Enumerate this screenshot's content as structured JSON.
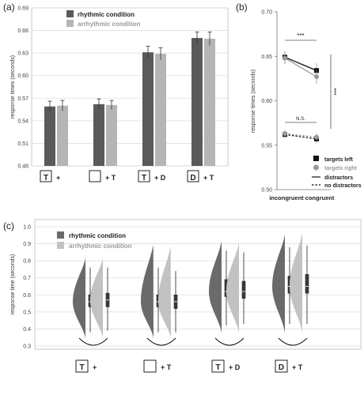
{
  "chart_data": [
    {
      "panel": "(a)",
      "type": "bar",
      "ylabel": "response times (seconds)",
      "ylim": [
        0.48,
        0.69
      ],
      "yticks": [
        "0.48",
        "0.51",
        "0.54",
        "0.57",
        "0.60",
        "0.63",
        "0.66",
        "0.69"
      ],
      "categories": [
        {
          "box": "T",
          "suffix": "+"
        },
        {
          "box": "",
          "suffix": "+ T"
        },
        {
          "box": "T",
          "suffix": "+ D"
        },
        {
          "box": "D",
          "suffix": "+ T"
        }
      ],
      "series": [
        {
          "name": "rhythmic condition",
          "color": "#5a5a5a",
          "values": [
            0.559,
            0.562,
            0.631,
            0.65
          ],
          "errors": [
            0.007,
            0.007,
            0.008,
            0.008
          ]
        },
        {
          "name": "arrhythmic condition",
          "color": "#b5b5b5",
          "values": [
            0.56,
            0.561,
            0.629,
            0.649
          ],
          "errors": [
            0.007,
            0.006,
            0.008,
            0.009
          ]
        }
      ],
      "grid": true,
      "legend": "top-left"
    },
    {
      "panel": "(b)",
      "type": "line",
      "ylabel": "response times (seconds)",
      "ylim": [
        0.5,
        0.7
      ],
      "yticks": [
        "0.50",
        "0.55",
        "0.60",
        "0.65",
        "0.70"
      ],
      "categories": [
        "incongruent",
        "congruent"
      ],
      "series": [
        {
          "name": "targets left",
          "marker": "square",
          "color": "#111111",
          "line": "distractors",
          "values": [
            0.649,
            0.634
          ],
          "errors": [
            0.007,
            0.008
          ]
        },
        {
          "name": "targets right",
          "marker": "circle",
          "color": "#9a9a9a",
          "line": "distractors",
          "values": [
            0.648,
            0.627
          ],
          "errors": [
            0.007,
            0.008
          ]
        },
        {
          "name": "targets left",
          "marker": "square",
          "color": "#111111",
          "line": "no distractors",
          "values": [
            0.562,
            0.557
          ],
          "errors": [
            0.004,
            0.005
          ]
        },
        {
          "name": "targets right",
          "marker": "circle",
          "color": "#9a9a9a",
          "line": "no distractors",
          "values": [
            0.563,
            0.559
          ],
          "errors": [
            0.004,
            0.004
          ]
        }
      ],
      "legend_entries": [
        "targets left",
        "targets right",
        "distractors",
        "no distractors"
      ],
      "annotations": [
        "***",
        "N.S.",
        "***"
      ],
      "legend": "bottom-right"
    },
    {
      "panel": "(c)",
      "type": "violin",
      "ylabel": "response time (seconds)",
      "ylim": [
        0.3,
        1.0
      ],
      "yticks": [
        "1.0",
        "0.9",
        "0.8",
        "0.7",
        "0.6",
        "0.5",
        "0.4",
        "0.3"
      ],
      "categories": [
        {
          "box": "T",
          "suffix": "+"
        },
        {
          "box": "",
          "suffix": "+ T"
        },
        {
          "box": "T",
          "suffix": "+ D"
        },
        {
          "box": "D",
          "suffix": "+ T"
        }
      ],
      "series": [
        {
          "name": "rhythmic condition",
          "color": "#6a6a6a",
          "min": [
            0.34,
            0.34,
            0.37,
            0.37
          ],
          "max": [
            0.82,
            0.91,
            0.92,
            0.96
          ],
          "q1": [
            0.53,
            0.53,
            0.59,
            0.61
          ],
          "median": [
            0.56,
            0.56,
            0.62,
            0.65
          ],
          "q3": [
            0.6,
            0.6,
            0.69,
            0.71
          ],
          "whisker_low": [
            0.38,
            0.38,
            0.42,
            0.43
          ],
          "whisker_high": [
            0.76,
            0.76,
            0.86,
            0.88
          ]
        },
        {
          "name": "arrhythmic condition",
          "color": "#c2c2c2",
          "min": [
            0.34,
            0.34,
            0.37,
            0.37
          ],
          "max": [
            0.82,
            0.9,
            0.91,
            0.97
          ],
          "q1": [
            0.53,
            0.52,
            0.58,
            0.61
          ],
          "median": [
            0.57,
            0.56,
            0.62,
            0.65
          ],
          "q3": [
            0.61,
            0.6,
            0.68,
            0.72
          ],
          "whisker_low": [
            0.39,
            0.38,
            0.43,
            0.43
          ],
          "whisker_high": [
            0.76,
            0.74,
            0.85,
            0.89
          ]
        }
      ],
      "grid": true,
      "legend": "top-left"
    }
  ]
}
